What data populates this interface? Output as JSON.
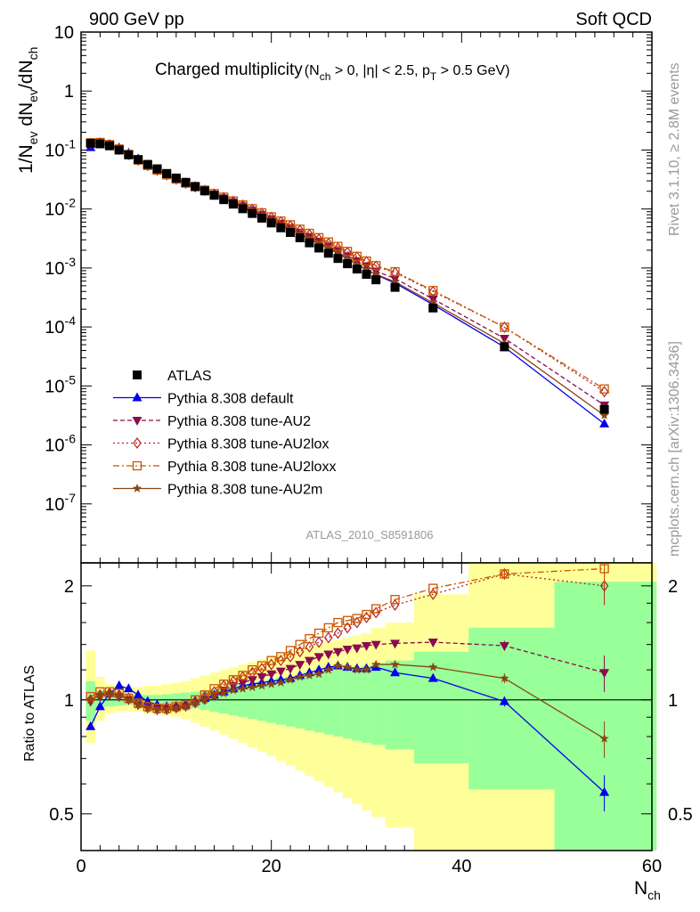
{
  "header": {
    "left": "900 GeV pp",
    "right": "Soft QCD"
  },
  "side_text": {
    "rivet": "Rivet 3.1.10, ≥ 2.8M events",
    "mcplots": "mcplots.cern.ch [arXiv:1306.3436]"
  },
  "chart_data": {
    "type": "scatter",
    "title_main": "Charged multiplicity",
    "title_cuts": "(N_ch > 0, |η| < 2.5, p_T > 0.5 GeV)",
    "ylabel": "1/N_ev dN_ev/dN_ch",
    "xlabel": "N_ch",
    "ratio_ylabel": "Ratio to ATLAS",
    "analysis_id": "ATLAS_2010_S8591806",
    "xlim": [
      0,
      60
    ],
    "ylim": [
      1e-08,
      10
    ],
    "y_scale": "log",
    "ratio_ylim": [
      0.4,
      2.3
    ],
    "ratio_y_scale": "log",
    "xticks": [
      "0",
      "20",
      "40",
      "60"
    ],
    "yticks": [
      "10^-7",
      "10^-6",
      "10^-5",
      "10^-4",
      "10^-3",
      "10^-2",
      "10^-1",
      "1",
      "10"
    ],
    "ratio_yticks": [
      "0.5",
      "1",
      "2"
    ],
    "legend_position": "bottom-left",
    "x": [
      1,
      2,
      3,
      4,
      5,
      6,
      7,
      8,
      9,
      10,
      11,
      12,
      13,
      14,
      15,
      16,
      17,
      18,
      19,
      20,
      21,
      22,
      23,
      24,
      25,
      26,
      27,
      28,
      29,
      30,
      31,
      33,
      37,
      44.5,
      55
    ],
    "data": {
      "name": "ATLAS",
      "color": "#000000",
      "values": [
        0.13,
        0.128,
        0.118,
        0.1,
        0.083,
        0.069,
        0.057,
        0.048,
        0.04,
        0.0335,
        0.0283,
        0.024,
        0.0203,
        0.0171,
        0.0144,
        0.0121,
        0.0101,
        0.0084,
        0.007,
        0.0058,
        0.0048,
        0.004,
        0.00325,
        0.00267,
        0.00218,
        0.00178,
        0.00145,
        0.00118,
        0.00096,
        0.00078,
        0.00063,
        0.00047,
        0.00021,
        4.6e-05,
        4e-06
      ],
      "band_hi_inner": [
        1.12,
        1.06,
        1.04,
        1.035,
        1.03,
        1.03,
        1.03,
        1.03,
        1.035,
        1.04,
        1.045,
        1.05,
        1.06,
        1.07,
        1.08,
        1.09,
        1.1,
        1.11,
        1.12,
        1.13,
        1.14,
        1.15,
        1.16,
        1.17,
        1.18,
        1.19,
        1.2,
        1.21,
        1.22,
        1.23,
        1.25,
        1.27,
        1.34,
        1.55,
        2.05
      ],
      "band_hi_outer": [
        1.35,
        1.15,
        1.1,
        1.09,
        1.08,
        1.08,
        1.09,
        1.09,
        1.1,
        1.11,
        1.12,
        1.14,
        1.16,
        1.18,
        1.2,
        1.22,
        1.24,
        1.26,
        1.28,
        1.3,
        1.32,
        1.34,
        1.36,
        1.38,
        1.4,
        1.42,
        1.44,
        1.46,
        1.48,
        1.5,
        1.55,
        1.6,
        1.9,
        2.3,
        2.3
      ],
      "band_lo_inner": [
        0.88,
        0.95,
        0.96,
        0.965,
        0.97,
        0.97,
        0.97,
        0.97,
        0.965,
        0.96,
        0.955,
        0.95,
        0.94,
        0.93,
        0.92,
        0.91,
        0.9,
        0.89,
        0.88,
        0.87,
        0.86,
        0.85,
        0.84,
        0.83,
        0.82,
        0.81,
        0.8,
        0.79,
        0.78,
        0.77,
        0.76,
        0.74,
        0.68,
        0.58,
        0.4
      ],
      "band_lo_outer": [
        0.77,
        0.88,
        0.92,
        0.93,
        0.93,
        0.93,
        0.92,
        0.92,
        0.91,
        0.9,
        0.89,
        0.87,
        0.85,
        0.83,
        0.81,
        0.79,
        0.77,
        0.75,
        0.73,
        0.71,
        0.69,
        0.67,
        0.65,
        0.63,
        0.61,
        0.59,
        0.57,
        0.55,
        0.53,
        0.51,
        0.49,
        0.46,
        0.4,
        0.4,
        0.4
      ]
    },
    "series": [
      {
        "name": "Pythia 8.308 default",
        "color": "#0000ee",
        "dash": "",
        "marker": "triangle-up",
        "ratio": [
          0.85,
          0.96,
          1.04,
          1.09,
          1.07,
          1.03,
          0.99,
          0.97,
          0.96,
          0.96,
          0.97,
          0.99,
          1.01,
          1.03,
          1.05,
          1.07,
          1.09,
          1.1,
          1.11,
          1.12,
          1.13,
          1.14,
          1.16,
          1.18,
          1.2,
          1.22,
          1.23,
          1.22,
          1.21,
          1.21,
          1.22,
          1.18,
          1.14,
          0.99,
          0.57
        ]
      },
      {
        "name": "Pythia 8.308 tune-AU2",
        "color": "#8b0a50",
        "dash": "5 3",
        "marker": "triangle-down",
        "ratio": [
          0.99,
          1.02,
          1.03,
          1.02,
          1.0,
          0.97,
          0.95,
          0.94,
          0.94,
          0.95,
          0.96,
          0.98,
          1.0,
          1.03,
          1.06,
          1.09,
          1.11,
          1.13,
          1.15,
          1.17,
          1.19,
          1.21,
          1.24,
          1.27,
          1.3,
          1.32,
          1.34,
          1.36,
          1.37,
          1.39,
          1.4,
          1.41,
          1.42,
          1.39,
          1.18
        ]
      },
      {
        "name": "Pythia 8.308 tune-AU2lox",
        "color": "#b22222",
        "dash": "2 3",
        "marker": "diamond",
        "ratio": [
          1.0,
          1.03,
          1.04,
          1.03,
          1.01,
          0.98,
          0.96,
          0.95,
          0.95,
          0.96,
          0.97,
          0.99,
          1.02,
          1.05,
          1.09,
          1.12,
          1.15,
          1.18,
          1.21,
          1.24,
          1.27,
          1.3,
          1.34,
          1.38,
          1.42,
          1.46,
          1.5,
          1.55,
          1.6,
          1.65,
          1.7,
          1.78,
          1.9,
          2.15,
          2.0
        ]
      },
      {
        "name": "Pythia 8.308 tune-AU2loxx",
        "color": "#cc5500",
        "dash": "7 3 2 3",
        "marker": "open-square",
        "ratio": [
          1.02,
          1.05,
          1.05,
          1.04,
          1.01,
          0.98,
          0.96,
          0.95,
          0.95,
          0.96,
          0.97,
          1.0,
          1.03,
          1.07,
          1.1,
          1.13,
          1.16,
          1.2,
          1.23,
          1.27,
          1.3,
          1.35,
          1.4,
          1.45,
          1.5,
          1.55,
          1.6,
          1.62,
          1.64,
          1.68,
          1.74,
          1.84,
          1.97,
          2.15,
          2.22
        ]
      },
      {
        "name": "Pythia 8.308 tune-AU2m",
        "color": "#8b4513",
        "dash": "",
        "marker": "star",
        "ratio": [
          1.0,
          1.03,
          1.04,
          1.03,
          1.0,
          0.97,
          0.95,
          0.94,
          0.94,
          0.95,
          0.96,
          0.98,
          1.0,
          1.02,
          1.04,
          1.06,
          1.07,
          1.08,
          1.09,
          1.1,
          1.11,
          1.13,
          1.15,
          1.16,
          1.17,
          1.2,
          1.23,
          1.22,
          1.2,
          1.2,
          1.24,
          1.24,
          1.22,
          1.14,
          0.79
        ]
      }
    ]
  }
}
